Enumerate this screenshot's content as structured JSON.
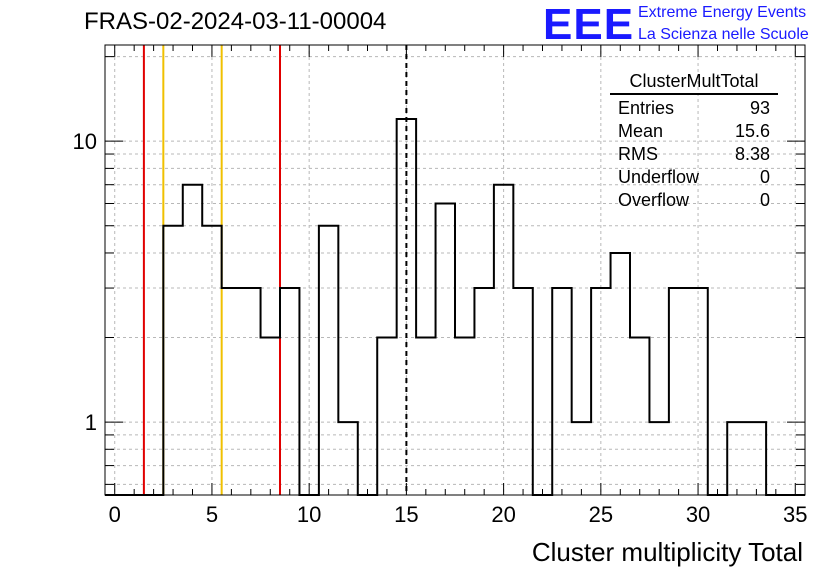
{
  "title": "FRAS-02-2024-03-11-00004",
  "logo": {
    "mark": "EEE",
    "line1": "Extreme Energy Events",
    "line2": "La Scienza nelle Scuole",
    "color": "#1a1aff"
  },
  "stats": {
    "title": "ClusterMultTotal",
    "rows": [
      {
        "label": "Entries",
        "value": "93"
      },
      {
        "label": "Mean",
        "value": "15.6"
      },
      {
        "label": "RMS",
        "value": "8.38"
      },
      {
        "label": "Underflow",
        "value": "0"
      },
      {
        "label": "Overflow",
        "value": "0"
      }
    ]
  },
  "chart_data": {
    "type": "histogram",
    "title": "FRAS-02-2024-03-11-00004",
    "xlabel": "Cluster multiplicity Total",
    "ylabel": "",
    "xlim": [
      -0.5,
      35.5
    ],
    "ylim": [
      0.55,
      22
    ],
    "yscale": "log",
    "grid": true,
    "bin_width": 1,
    "bin_centers": [
      0,
      1,
      2,
      3,
      4,
      5,
      6,
      7,
      8,
      9,
      10,
      11,
      12,
      13,
      14,
      15,
      16,
      17,
      18,
      19,
      20,
      21,
      22,
      23,
      24,
      25,
      26,
      27,
      28,
      29,
      30,
      31,
      32,
      33,
      34,
      35
    ],
    "counts": [
      0,
      0,
      0,
      5,
      7,
      5,
      3,
      3,
      2,
      3,
      0,
      5,
      1,
      0,
      2,
      12,
      2,
      6,
      2,
      3,
      7,
      3,
      0,
      3,
      1,
      3,
      4,
      2,
      1,
      3,
      3,
      0,
      1,
      1,
      0,
      0
    ],
    "x_ticks": [
      "0",
      "5",
      "10",
      "15",
      "20",
      "25",
      "30",
      "35"
    ],
    "y_ticks": [
      "1",
      "10"
    ],
    "lines": [
      {
        "x": 1.5,
        "color": "#e00000",
        "style": "solid"
      },
      {
        "x": 2.5,
        "color": "#f0c000",
        "style": "solid"
      },
      {
        "x": 5.5,
        "color": "#f0c000",
        "style": "solid"
      },
      {
        "x": 8.5,
        "color": "#e00000",
        "style": "solid"
      },
      {
        "x": 15.0,
        "color": "#000000",
        "style": "dashed"
      }
    ]
  }
}
